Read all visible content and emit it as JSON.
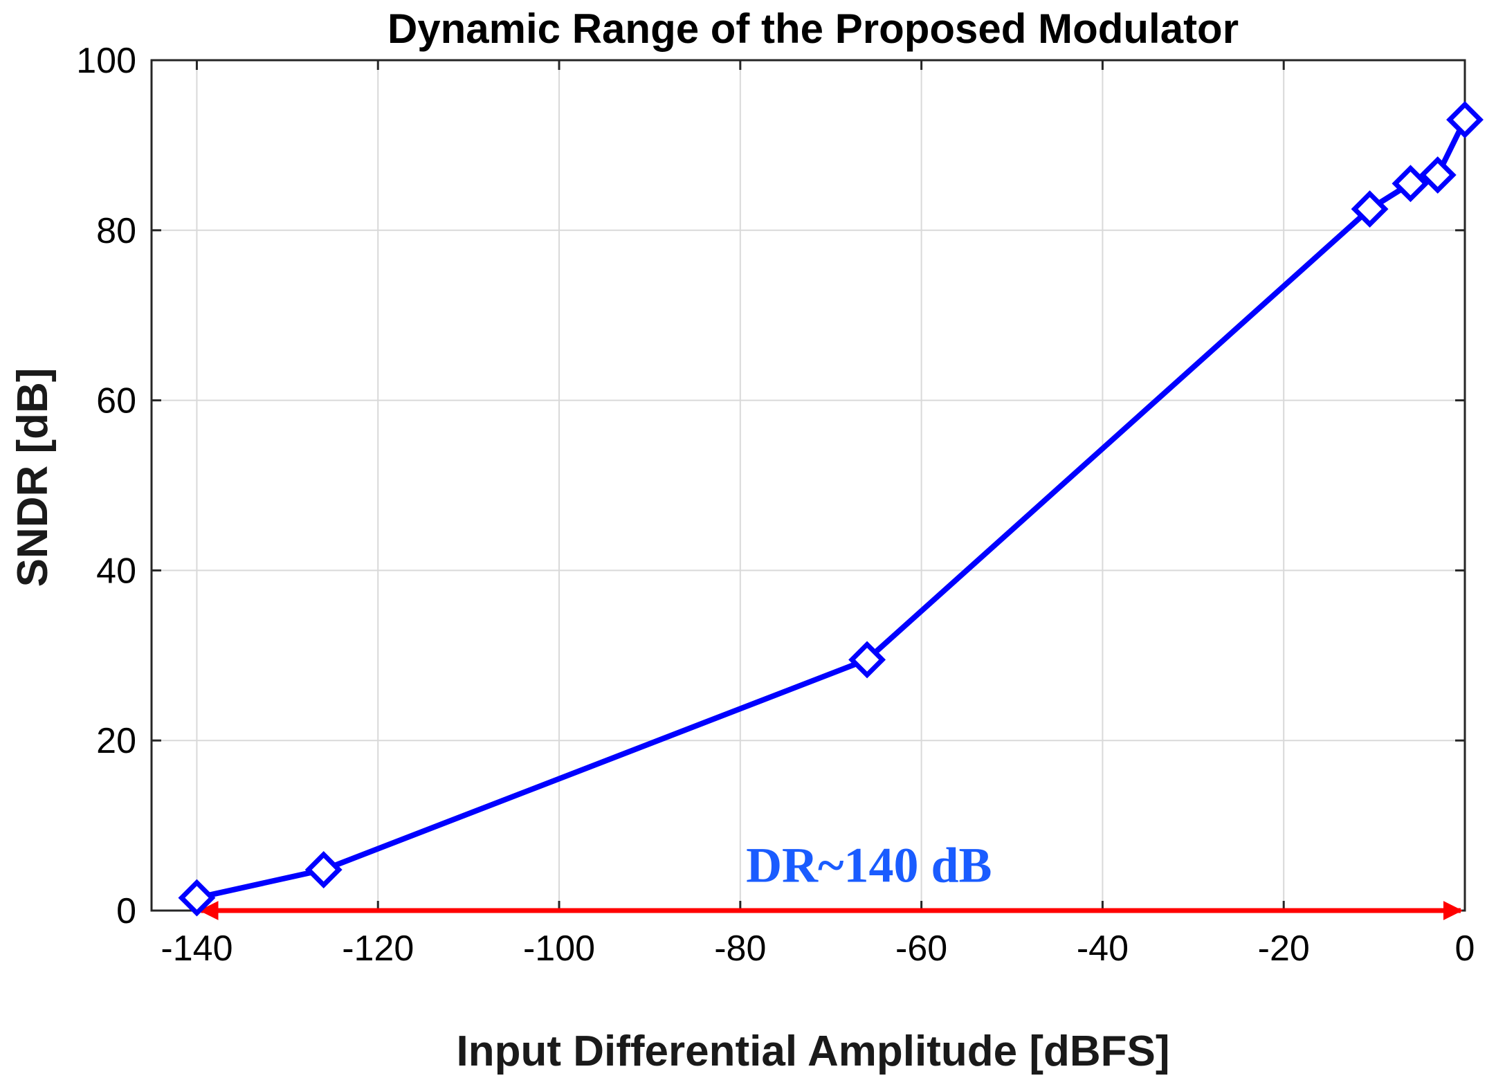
{
  "chart_data": {
    "type": "line",
    "title": "Dynamic Range of the Proposed Modulator",
    "xlabel": "Input Differential Amplitude [dBFS]",
    "ylabel": "SNDR [dB]",
    "xlim": [
      -145,
      0
    ],
    "ylim": [
      0,
      100
    ],
    "xticks": [
      -140,
      -120,
      -100,
      -80,
      -60,
      -40,
      -20,
      0
    ],
    "yticks": [
      0,
      20,
      40,
      60,
      80,
      100
    ],
    "xtick_labels": [
      "-140",
      "-120",
      "-100",
      "-80",
      "-60",
      "-40",
      "-20",
      "0"
    ],
    "ytick_labels": [
      "0",
      "20",
      "40",
      "60",
      "80",
      "100"
    ],
    "grid": true,
    "series": [
      {
        "name": "SNDR",
        "color": "#0000ff",
        "marker": "diamond",
        "x": [
          -140,
          -126,
          -66,
          -10.5,
          -6,
          -3,
          0
        ],
        "y": [
          1.5,
          4.8,
          29.5,
          82.5,
          85.5,
          86.5,
          93
        ]
      }
    ],
    "annotation": {
      "text": "DR~140 dB",
      "color": "#1a5cff",
      "x": -80,
      "y": 5
    },
    "range_arrow": {
      "color": "#ff0000",
      "x_start": -140,
      "x_end": 0,
      "y": 0
    }
  }
}
